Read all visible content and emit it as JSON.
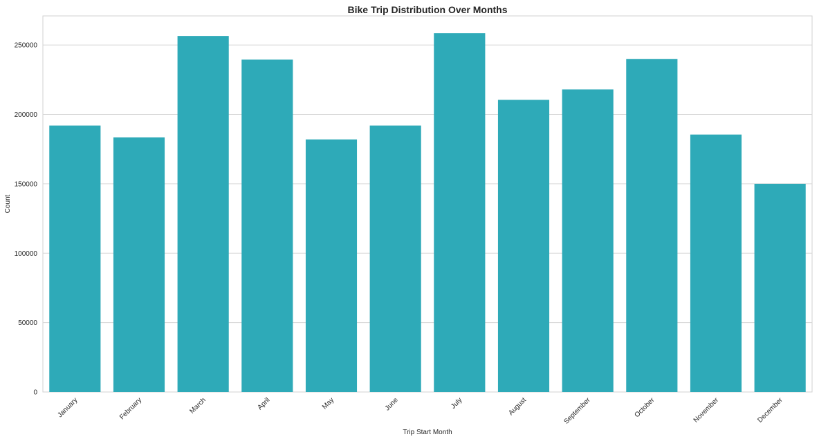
{
  "chart_data": {
    "type": "bar",
    "title": "Bike Trip Distribution Over Months",
    "xlabel": "Trip Start Month",
    "ylabel": "Count",
    "categories": [
      "January",
      "February",
      "March",
      "April",
      "May",
      "June",
      "July",
      "August",
      "September",
      "October",
      "November",
      "December"
    ],
    "values": [
      192000,
      183500,
      256500,
      239500,
      182000,
      192000,
      258500,
      210500,
      218000,
      240000,
      185500,
      150000
    ],
    "ylim": [
      0,
      271000
    ],
    "yticks": [
      0,
      50000,
      100000,
      150000,
      200000,
      250000
    ],
    "grid": true,
    "bar_color": "#2eaab8",
    "grid_color": "#d6d6d6"
  }
}
